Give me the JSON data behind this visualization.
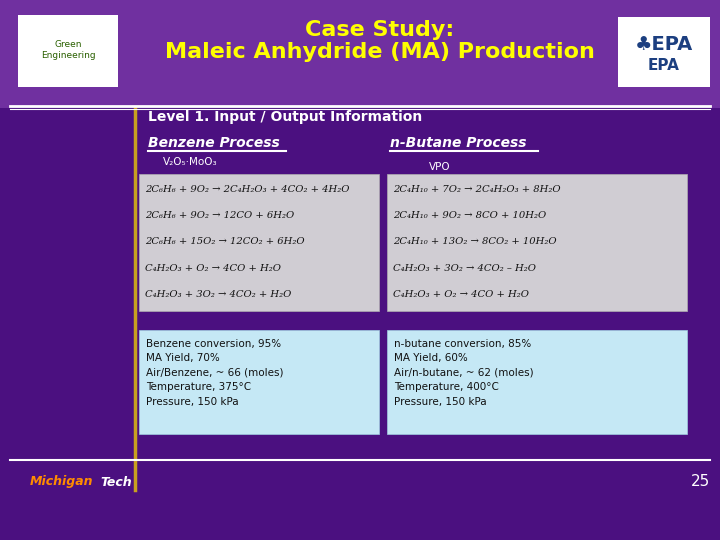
{
  "title_line1": "Case Study:",
  "title_line2": "Maleic Anhydride (MA) Production",
  "title_color": "#FFFF00",
  "bg_color_header": "#7030A0",
  "bg_color_main": "#4A1070",
  "section_title": "Level 1. Input / Output Information",
  "benzene_title": "Benzene Process",
  "nbutane_title": "n-Butane Process",
  "catalyst_benzene": "V₂O₅·MoO₃",
  "catalyst_nbutane": "VPO",
  "benzene_reactions": [
    "2C₆H₆ + 9O₂ → 2C₄H₂O₃ + 4CO₂ + 4H₂O",
    "2C₆H₆ + 9O₂ → 12CO + 6H₂O",
    "2C₆H₆ + 15O₂ → 12CO₂ + 6H₂O",
    "C₄H₂O₃ + O₂ → 4CO + H₂O",
    "C₄H₂O₃ + 3O₂ → 4CO₂ + H₂O"
  ],
  "nbutane_reactions": [
    "2C₄H₁₀ + 7O₂ → 2C₄H₂O₃ + 8H₂O",
    "2C₄H₁₀ + 9O₂ → 8CO + 10H₂O",
    "2C₄H₁₀ + 13O₂ → 8CO₂ + 10H₂O",
    "C₄H₂O₃ + 3O₂ → 4CO₂ – H₂O",
    "C₄H₂O₃ + O₂ → 4CO + H₂O"
  ],
  "benzene_info": "Benzene conversion, 95%\nMA Yield, 70%\nAir/Benzene, ~ 66 (moles)\nTemperature, 375°C\nPressure, 150 kPa",
  "nbutane_info": "n-butane conversion, 85%\nMA Yield, 60%\nAir/n-butane, ~ 62 (moles)\nTemperature, 400°C\nPressure, 150 kPa",
  "page_number": "25",
  "footer_text": "Michigan Tech",
  "white_color": "#FFFFFF",
  "light_blue_box": "#C5E8F5",
  "reaction_box_color": "#E0E0E0",
  "gold_line_color": "#C8A020",
  "epa_blue": "#1C3F80"
}
